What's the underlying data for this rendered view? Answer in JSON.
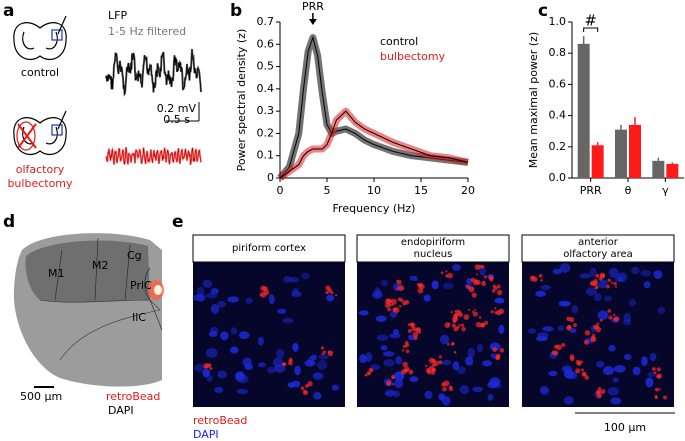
{
  "panel_labels": [
    "a",
    "b",
    "c",
    "d",
    "e"
  ],
  "panel_a": {
    "lfp_title": "LFP",
    "filter": "1-5 Hz filtered",
    "control_label": "control",
    "bulbectomy_label": [
      "olfactory",
      "bulbectomy"
    ],
    "scale_voltage": "0.2 mV",
    "scale_time": "0.5 s"
  },
  "chart_data": [
    {
      "type": "line",
      "annotation": "PRR",
      "x_label": "Frequency (Hz)",
      "y_label": "Power spectral density (z)",
      "x": [
        0,
        1,
        2,
        2.5,
        3,
        3.5,
        4,
        4.5,
        5,
        5.5,
        6,
        7,
        8,
        9,
        10,
        12,
        14,
        16,
        18,
        20
      ],
      "series": [
        {
          "name": "control",
          "color": "#000000",
          "values": [
            0,
            0.05,
            0.2,
            0.4,
            0.57,
            0.63,
            0.55,
            0.38,
            0.24,
            0.2,
            0.21,
            0.22,
            0.2,
            0.17,
            0.15,
            0.12,
            0.1,
            0.09,
            0.08,
            0.07
          ]
        },
        {
          "name": "bulbectomy",
          "color": "#e41a1c",
          "values": [
            0,
            0.03,
            0.06,
            0.1,
            0.12,
            0.13,
            0.13,
            0.13,
            0.15,
            0.2,
            0.26,
            0.3,
            0.25,
            0.22,
            0.2,
            0.16,
            0.13,
            0.1,
            0.09,
            0.07
          ]
        }
      ],
      "xlim": [
        0,
        20
      ],
      "ylim": [
        0,
        0.7
      ],
      "xticks": [
        0,
        5,
        10,
        15,
        20
      ],
      "yticks": [
        0,
        0.1,
        0.2,
        0.3,
        0.4,
        0.5,
        0.6,
        0.7
      ]
    },
    {
      "type": "bar",
      "annotation": "#",
      "y_label": "Mean maximal power (z)",
      "categories": [
        "PRR",
        "θ",
        "γ"
      ],
      "series": [
        {
          "color": "#666666",
          "values": [
            0.86,
            0.31,
            0.11
          ],
          "errors": [
            0.05,
            0.03,
            0.02
          ]
        },
        {
          "color": "#ff1a1a",
          "values": [
            0.21,
            0.34,
            0.09
          ],
          "errors": [
            0.02,
            0.05,
            0.01
          ]
        }
      ],
      "ylim": [
        0,
        1.0
      ],
      "yticks": [
        {
          "value": 0,
          "label": "0.0"
        },
        0.2,
        0.4,
        0.6,
        0.8,
        {
          "value": 1.0,
          "label": "1.0"
        }
      ]
    }
  ],
  "panel_d": {
    "regions": [
      "M1",
      "M2",
      "Cg",
      "PrlC",
      "IlC"
    ],
    "scale": "500 µm",
    "stain_1": "retroBead",
    "stain_2": "DAPI"
  },
  "panel_e": {
    "titles": [
      [
        "piriform cortex"
      ],
      [
        "endopiriform",
        "nucleus"
      ],
      [
        "anterior",
        "olfactory area"
      ]
    ],
    "stain_1": "retroBead",
    "stain_2": "DAPI",
    "scale": "100 µm"
  }
}
